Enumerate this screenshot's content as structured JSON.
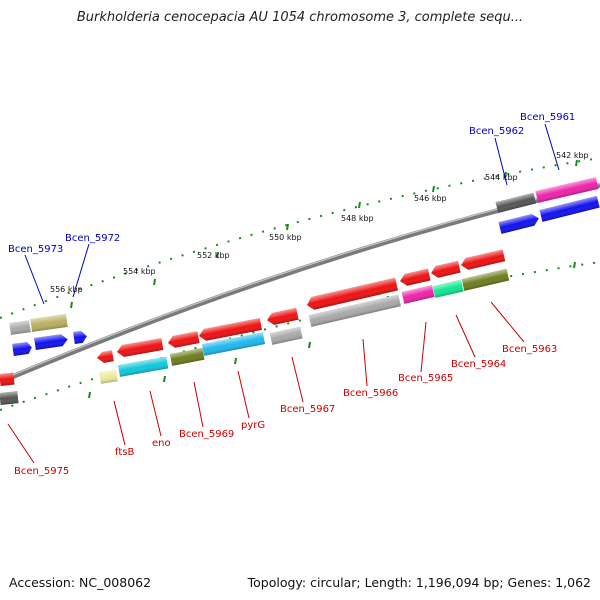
{
  "title": "Burkholderia cenocepacia AU 1054 chromosome 3, complete sequ...",
  "footer": {
    "accession": "Accession: NC_008062",
    "stats": "Topology: circular; Length: 1,196,094 bp; Genes: 1,062"
  },
  "ticks": [
    "542 kbp",
    "544 kbp",
    "546 kbp",
    "548 kbp",
    "550 kbp",
    "552 kbp",
    "554 kbp",
    "556 kbp"
  ],
  "upper_labels": [
    "Bcen_5961",
    "Bcen_5962",
    "Bcen_5972",
    "Bcen_5973"
  ],
  "lower_labels": [
    "Bcen_5963",
    "Bcen_5964",
    "Bcen_5965",
    "Bcen_5966",
    "Bcen_5967",
    "pyrG",
    "Bcen_5969",
    "eno",
    "ftsB",
    "Bcen_5975"
  ],
  "colors": {
    "backbone": "#7a7a7a",
    "tick_dots": "#1a8a1a",
    "forward_label": "#0000bb",
    "reverse_label": "#cc0000",
    "red_gene": "#ee1111",
    "blue_gene": "#1111ee",
    "grey_gene": "#a8a8a8",
    "dark_grey_gene": "#555555",
    "olive_gene": "#6e7e1e",
    "khaki_gene": "#b8b060",
    "cyan_gene": "#10c8dc",
    "sky_gene": "#20b8f0",
    "green_gene": "#10e890",
    "magenta_gene": "#ee22aa",
    "pale_yellow_gene": "#eeea9a"
  }
}
